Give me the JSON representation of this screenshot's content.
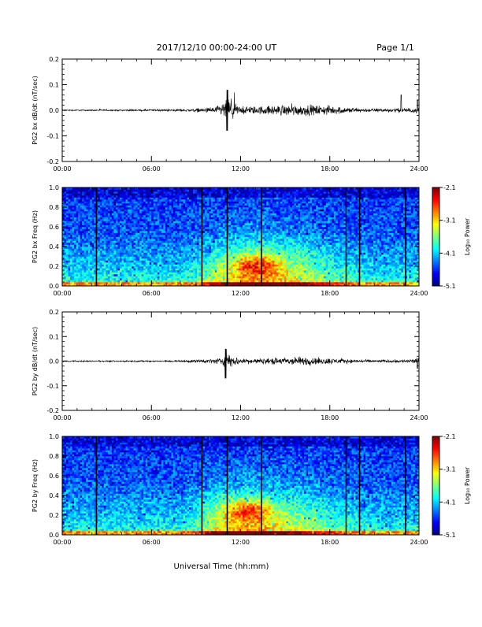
{
  "header": {
    "title": "2017/12/10  00:00-24:00 UT",
    "page": "Page 1/1"
  },
  "x_axis": {
    "label": "Universal Time (hh:mm)",
    "range_hours": [
      0,
      24
    ],
    "tick_values": [
      0,
      6,
      12,
      18,
      24
    ],
    "tick_labels": [
      "00:00",
      "06:00",
      "12:00",
      "18:00",
      "24:00"
    ]
  },
  "colorbar": {
    "label": "Log₁₀ Power",
    "range": [
      -5.1,
      -2.1
    ],
    "tick_values": [
      -2.1,
      -3.1,
      -4.1,
      -5.1
    ],
    "tick_labels": [
      "-2.1",
      "-3.1",
      "-4.1",
      "-5.1"
    ]
  },
  "chart_data": [
    {
      "type": "line",
      "ylabel": "PG2 bx dB/dt (nT/sec)",
      "ylim": [
        -0.2,
        0.2
      ],
      "ytick_labels": [
        "0.2",
        "0.1",
        "0.0",
        "-0.1",
        "-0.2"
      ],
      "ytick_values": [
        0.2,
        0.1,
        0.0,
        -0.1,
        -0.2
      ],
      "xlim": [
        0,
        24
      ],
      "x_hours": [
        0,
        2,
        4,
        6,
        7,
        8,
        9,
        9.5,
        10,
        10.5,
        11,
        11.3,
        11.7,
        12,
        13,
        14,
        15,
        16,
        17,
        18,
        19,
        20,
        21,
        22,
        23,
        23.5,
        24
      ],
      "noise_envelope": [
        0.004,
        0.004,
        0.004,
        0.005,
        0.006,
        0.007,
        0.01,
        0.012,
        0.015,
        0.025,
        0.05,
        0.07,
        0.035,
        0.02,
        0.022,
        0.025,
        0.03,
        0.03,
        0.027,
        0.025,
        0.018,
        0.012,
        0.01,
        0.01,
        0.012,
        0.015,
        0.015
      ],
      "peak": {
        "x": 11.1,
        "max": 0.08,
        "min": -0.08
      },
      "bursts": [
        {
          "x": 22.8,
          "value": 0.06
        },
        {
          "x": 23.9,
          "value": 0.04
        }
      ]
    },
    {
      "type": "heatmap",
      "ylabel": "PG2 bx Freq (Hz)",
      "ylim": [
        0.0,
        1.0
      ],
      "ytick_labels": [
        "1.0",
        "0.8",
        "0.6",
        "0.4",
        "0.2",
        "0.0"
      ],
      "ytick_values": [
        1.0,
        0.8,
        0.6,
        0.4,
        0.2,
        0.0
      ],
      "xlim": [
        0,
        24
      ],
      "gap_lines_hours": [
        2.3,
        9.4,
        11.1,
        13.4,
        19.1,
        20.0,
        23.1
      ],
      "enhancement_center": {
        "x": 13.0,
        "y": 0.22
      },
      "value_range": [
        -5.1,
        -2.1
      ]
    },
    {
      "type": "line",
      "ylabel": "PG2 by dB/dt (nT/sec)",
      "ylim": [
        -0.2,
        0.2
      ],
      "ytick_labels": [
        "0.2",
        "0.1",
        "0.0",
        "-0.1",
        "-0.2"
      ],
      "ytick_values": [
        0.2,
        0.1,
        0.0,
        -0.1,
        -0.2
      ],
      "xlim": [
        0,
        24
      ],
      "x_hours": [
        0,
        2,
        4,
        6,
        7,
        8,
        9,
        9.5,
        10,
        10.5,
        11,
        11.3,
        11.7,
        12,
        13,
        14,
        15,
        16,
        17,
        18,
        19,
        20,
        21,
        22,
        23,
        23.5,
        24
      ],
      "noise_envelope": [
        0.004,
        0.004,
        0.004,
        0.004,
        0.005,
        0.006,
        0.008,
        0.01,
        0.012,
        0.018,
        0.03,
        0.04,
        0.025,
        0.015,
        0.015,
        0.018,
        0.022,
        0.025,
        0.02,
        0.018,
        0.012,
        0.01,
        0.008,
        0.008,
        0.01,
        0.012,
        0.02
      ],
      "peak": {
        "x": 11.0,
        "max": 0.05,
        "min": -0.07
      },
      "bursts": [
        {
          "x": 23.9,
          "value": -0.03
        }
      ]
    },
    {
      "type": "heatmap",
      "ylabel": "PG2 by Freq (Hz)",
      "ylim": [
        0.0,
        1.0
      ],
      "ytick_labels": [
        "1.0",
        "0.8",
        "0.6",
        "0.4",
        "0.2",
        "0.0"
      ],
      "ytick_values": [
        1.0,
        0.8,
        0.6,
        0.4,
        0.2,
        0.0
      ],
      "xlim": [
        0,
        24
      ],
      "gap_lines_hours": [
        2.3,
        9.4,
        11.1,
        13.4,
        19.1,
        20.0,
        23.1
      ],
      "enhancement_center": {
        "x": 12.5,
        "y": 0.25
      },
      "value_range": [
        -5.1,
        -2.1
      ]
    }
  ]
}
